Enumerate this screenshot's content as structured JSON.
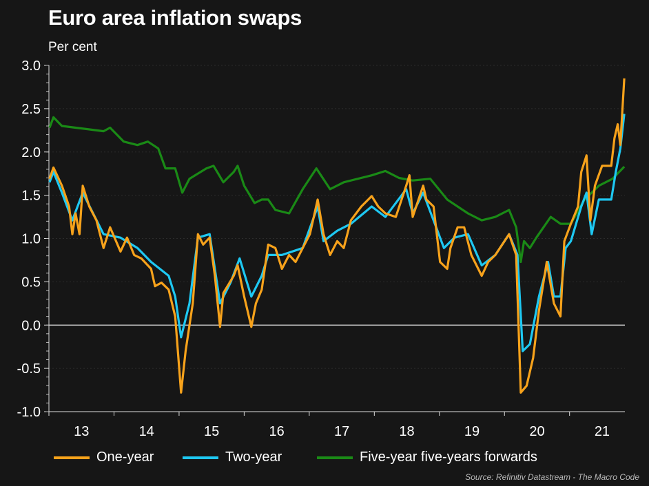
{
  "chart_data": {
    "type": "line",
    "title": "Euro area inflation swaps",
    "ylabel": "Per cent",
    "xlabel": "",
    "ylim": [
      -1.0,
      3.0
    ],
    "xlim": [
      2013.0,
      2021.85
    ],
    "yticks": [
      "3.0",
      "2.5",
      "2.0",
      "1.5",
      "1.0",
      "0.5",
      "0.0",
      "-0.5",
      "-1.0"
    ],
    "ytick_values": [
      3.0,
      2.5,
      2.0,
      1.5,
      1.0,
      0.5,
      0.0,
      -0.5,
      -1.0
    ],
    "xticks": [
      "13",
      "14",
      "15",
      "16",
      "17",
      "18",
      "19",
      "20",
      "21"
    ],
    "xtick_values": [
      2013,
      2014,
      2015,
      2016,
      2017,
      2018,
      2019,
      2020,
      2021
    ],
    "grid": true,
    "legend_placement": "bottom",
    "source": "Source: Refinitiv Datastream - The Macro Code",
    "series": [
      {
        "name": "One-year",
        "color": "#f7a21b",
        "points": [
          [
            2013.01,
            1.69
          ],
          [
            2013.07,
            1.82
          ],
          [
            2013.2,
            1.61
          ],
          [
            2013.31,
            1.37
          ],
          [
            2013.36,
            1.05
          ],
          [
            2013.41,
            1.29
          ],
          [
            2013.47,
            1.05
          ],
          [
            2013.52,
            1.61
          ],
          [
            2013.62,
            1.37
          ],
          [
            2013.73,
            1.21
          ],
          [
            2013.84,
            0.89
          ],
          [
            2013.94,
            1.13
          ],
          [
            2014.1,
            0.85
          ],
          [
            2014.2,
            1.01
          ],
          [
            2014.31,
            0.81
          ],
          [
            2014.42,
            0.77
          ],
          [
            2014.57,
            0.65
          ],
          [
            2014.63,
            0.45
          ],
          [
            2014.73,
            0.49
          ],
          [
            2014.84,
            0.41
          ],
          [
            2014.94,
            0.1
          ],
          [
            2015.03,
            -0.78
          ],
          [
            2015.1,
            -0.3
          ],
          [
            2015.21,
            0.25
          ],
          [
            2015.29,
            1.05
          ],
          [
            2015.37,
            0.93
          ],
          [
            2015.47,
            1.01
          ],
          [
            2015.55,
            0.57
          ],
          [
            2015.63,
            -0.02
          ],
          [
            2015.68,
            0.37
          ],
          [
            2015.84,
            0.57
          ],
          [
            2015.9,
            0.69
          ],
          [
            2016.0,
            0.33
          ],
          [
            2016.11,
            -0.02
          ],
          [
            2016.18,
            0.25
          ],
          [
            2016.27,
            0.41
          ],
          [
            2016.37,
            0.93
          ],
          [
            2016.48,
            0.89
          ],
          [
            2016.58,
            0.65
          ],
          [
            2016.69,
            0.81
          ],
          [
            2016.79,
            0.73
          ],
          [
            2016.9,
            0.89
          ],
          [
            2017.01,
            1.05
          ],
          [
            2017.13,
            1.45
          ],
          [
            2017.22,
            1.05
          ],
          [
            2017.32,
            0.81
          ],
          [
            2017.43,
            0.97
          ],
          [
            2017.53,
            0.89
          ],
          [
            2017.64,
            1.21
          ],
          [
            2017.8,
            1.37
          ],
          [
            2017.96,
            1.49
          ],
          [
            2018.06,
            1.37
          ],
          [
            2018.17,
            1.29
          ],
          [
            2018.33,
            1.25
          ],
          [
            2018.49,
            1.61
          ],
          [
            2018.54,
            1.73
          ],
          [
            2018.59,
            1.25
          ],
          [
            2018.75,
            1.61
          ],
          [
            2018.8,
            1.45
          ],
          [
            2018.91,
            1.37
          ],
          [
            2019.01,
            0.73
          ],
          [
            2019.12,
            0.65
          ],
          [
            2019.17,
            0.89
          ],
          [
            2019.28,
            1.13
          ],
          [
            2019.38,
            1.13
          ],
          [
            2019.49,
            0.81
          ],
          [
            2019.65,
            0.57
          ],
          [
            2019.75,
            0.73
          ],
          [
            2019.86,
            0.81
          ],
          [
            2020.07,
            1.05
          ],
          [
            2020.18,
            0.81
          ],
          [
            2020.25,
            -0.78
          ],
          [
            2020.34,
            -0.7
          ],
          [
            2020.44,
            -0.38
          ],
          [
            2020.53,
            0.17
          ],
          [
            2020.65,
            0.73
          ],
          [
            2020.76,
            0.25
          ],
          [
            2020.86,
            0.1
          ],
          [
            2020.92,
            0.97
          ],
          [
            2021.02,
            1.17
          ],
          [
            2021.13,
            1.37
          ],
          [
            2021.18,
            1.77
          ],
          [
            2021.26,
            1.96
          ],
          [
            2021.32,
            1.21
          ],
          [
            2021.39,
            1.61
          ],
          [
            2021.5,
            1.84
          ],
          [
            2021.64,
            1.84
          ],
          [
            2021.69,
            2.16
          ],
          [
            2021.74,
            2.32
          ],
          [
            2021.78,
            2.08
          ],
          [
            2021.84,
            2.85
          ]
        ]
      },
      {
        "name": "Two-year",
        "color": "#1ec8f2",
        "points": [
          [
            2013.01,
            1.65
          ],
          [
            2013.07,
            1.77
          ],
          [
            2013.2,
            1.53
          ],
          [
            2013.36,
            1.21
          ],
          [
            2013.52,
            1.53
          ],
          [
            2013.84,
            1.05
          ],
          [
            2014.1,
            1.01
          ],
          [
            2014.36,
            0.89
          ],
          [
            2014.57,
            0.73
          ],
          [
            2014.84,
            0.57
          ],
          [
            2014.94,
            0.33
          ],
          [
            2015.03,
            -0.14
          ],
          [
            2015.16,
            0.25
          ],
          [
            2015.29,
            1.01
          ],
          [
            2015.47,
            1.05
          ],
          [
            2015.63,
            0.25
          ],
          [
            2015.79,
            0.49
          ],
          [
            2015.93,
            0.77
          ],
          [
            2016.11,
            0.33
          ],
          [
            2016.27,
            0.57
          ],
          [
            2016.37,
            0.81
          ],
          [
            2016.58,
            0.81
          ],
          [
            2016.9,
            0.89
          ],
          [
            2017.13,
            1.37
          ],
          [
            2017.22,
            0.97
          ],
          [
            2017.43,
            1.09
          ],
          [
            2017.64,
            1.17
          ],
          [
            2017.96,
            1.37
          ],
          [
            2018.17,
            1.25
          ],
          [
            2018.49,
            1.57
          ],
          [
            2018.59,
            1.29
          ],
          [
            2018.75,
            1.53
          ],
          [
            2018.91,
            1.21
          ],
          [
            2019.07,
            0.89
          ],
          [
            2019.23,
            1.01
          ],
          [
            2019.44,
            1.05
          ],
          [
            2019.65,
            0.69
          ],
          [
            2019.86,
            0.81
          ],
          [
            2020.07,
            1.05
          ],
          [
            2020.2,
            0.81
          ],
          [
            2020.28,
            -0.3
          ],
          [
            2020.39,
            -0.22
          ],
          [
            2020.53,
            0.33
          ],
          [
            2020.67,
            0.73
          ],
          [
            2020.76,
            0.33
          ],
          [
            2020.86,
            0.33
          ],
          [
            2020.94,
            0.89
          ],
          [
            2021.02,
            0.97
          ],
          [
            2021.18,
            1.37
          ],
          [
            2021.26,
            1.53
          ],
          [
            2021.34,
            1.05
          ],
          [
            2021.45,
            1.45
          ],
          [
            2021.64,
            1.45
          ],
          [
            2021.71,
            1.77
          ],
          [
            2021.78,
            2.04
          ],
          [
            2021.84,
            2.44
          ]
        ]
      },
      {
        "name": "Five-year five-years forwards",
        "color": "#1a8a16",
        "points": [
          [
            2013.01,
            2.28
          ],
          [
            2013.07,
            2.4
          ],
          [
            2013.2,
            2.3
          ],
          [
            2013.41,
            2.28
          ],
          [
            2013.84,
            2.24
          ],
          [
            2013.94,
            2.28
          ],
          [
            2014.15,
            2.12
          ],
          [
            2014.36,
            2.08
          ],
          [
            2014.52,
            2.12
          ],
          [
            2014.68,
            2.04
          ],
          [
            2014.79,
            1.81
          ],
          [
            2014.94,
            1.81
          ],
          [
            2015.05,
            1.53
          ],
          [
            2015.16,
            1.69
          ],
          [
            2015.42,
            1.81
          ],
          [
            2015.53,
            1.84
          ],
          [
            2015.68,
            1.65
          ],
          [
            2015.84,
            1.77
          ],
          [
            2015.9,
            1.84
          ],
          [
            2016.0,
            1.61
          ],
          [
            2016.16,
            1.41
          ],
          [
            2016.27,
            1.45
          ],
          [
            2016.37,
            1.45
          ],
          [
            2016.48,
            1.33
          ],
          [
            2016.69,
            1.29
          ],
          [
            2016.9,
            1.57
          ],
          [
            2017.11,
            1.81
          ],
          [
            2017.32,
            1.57
          ],
          [
            2017.53,
            1.65
          ],
          [
            2017.96,
            1.73
          ],
          [
            2018.17,
            1.78
          ],
          [
            2018.38,
            1.7
          ],
          [
            2018.59,
            1.67
          ],
          [
            2018.86,
            1.69
          ],
          [
            2019.12,
            1.45
          ],
          [
            2019.44,
            1.29
          ],
          [
            2019.65,
            1.21
          ],
          [
            2019.86,
            1.25
          ],
          [
            2020.07,
            1.33
          ],
          [
            2020.18,
            1.13
          ],
          [
            2020.25,
            0.73
          ],
          [
            2020.3,
            0.97
          ],
          [
            2020.39,
            0.89
          ],
          [
            2020.49,
            1.01
          ],
          [
            2020.6,
            1.13
          ],
          [
            2020.71,
            1.25
          ],
          [
            2020.86,
            1.17
          ],
          [
            2021.02,
            1.17
          ],
          [
            2021.23,
            1.45
          ],
          [
            2021.45,
            1.61
          ],
          [
            2021.66,
            1.69
          ],
          [
            2021.84,
            1.83
          ]
        ]
      }
    ]
  }
}
